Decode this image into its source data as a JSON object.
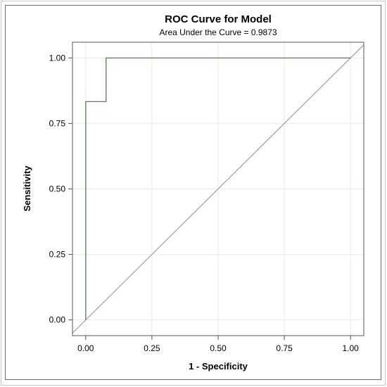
{
  "chart_data": {
    "type": "line",
    "title": "ROC Curve for Model",
    "subtitle": "Area Under the Curve = 0.9873",
    "xlabel": "1 - Specificity",
    "ylabel": "Sensitivity",
    "xlim": [
      -0.05,
      1.05
    ],
    "ylim": [
      -0.06,
      1.06
    ],
    "xticks": [
      "0.00",
      "0.25",
      "0.50",
      "0.75",
      "1.00"
    ],
    "yticks": [
      "0.00",
      "0.25",
      "0.50",
      "0.75",
      "1.00"
    ],
    "grid": true,
    "legend": "none",
    "series": [
      {
        "x": [
          0.0,
          0.0,
          0.0,
          0.0769,
          0.0769,
          0.0769,
          1.0
        ],
        "y": [
          0.0,
          0.0,
          0.8333,
          0.8333,
          1.0,
          1.0,
          1.0
        ]
      },
      {
        "x": [
          -0.05,
          1.05
        ],
        "y": [
          -0.05,
          1.05
        ]
      }
    ],
    "colors": {
      "roc": "#5a7a5a",
      "diagonal": "#a0a0a0",
      "grid": "#e8ecdc",
      "frame_border": "#6b6b6b",
      "outer_border": "#c8c8c8"
    }
  }
}
